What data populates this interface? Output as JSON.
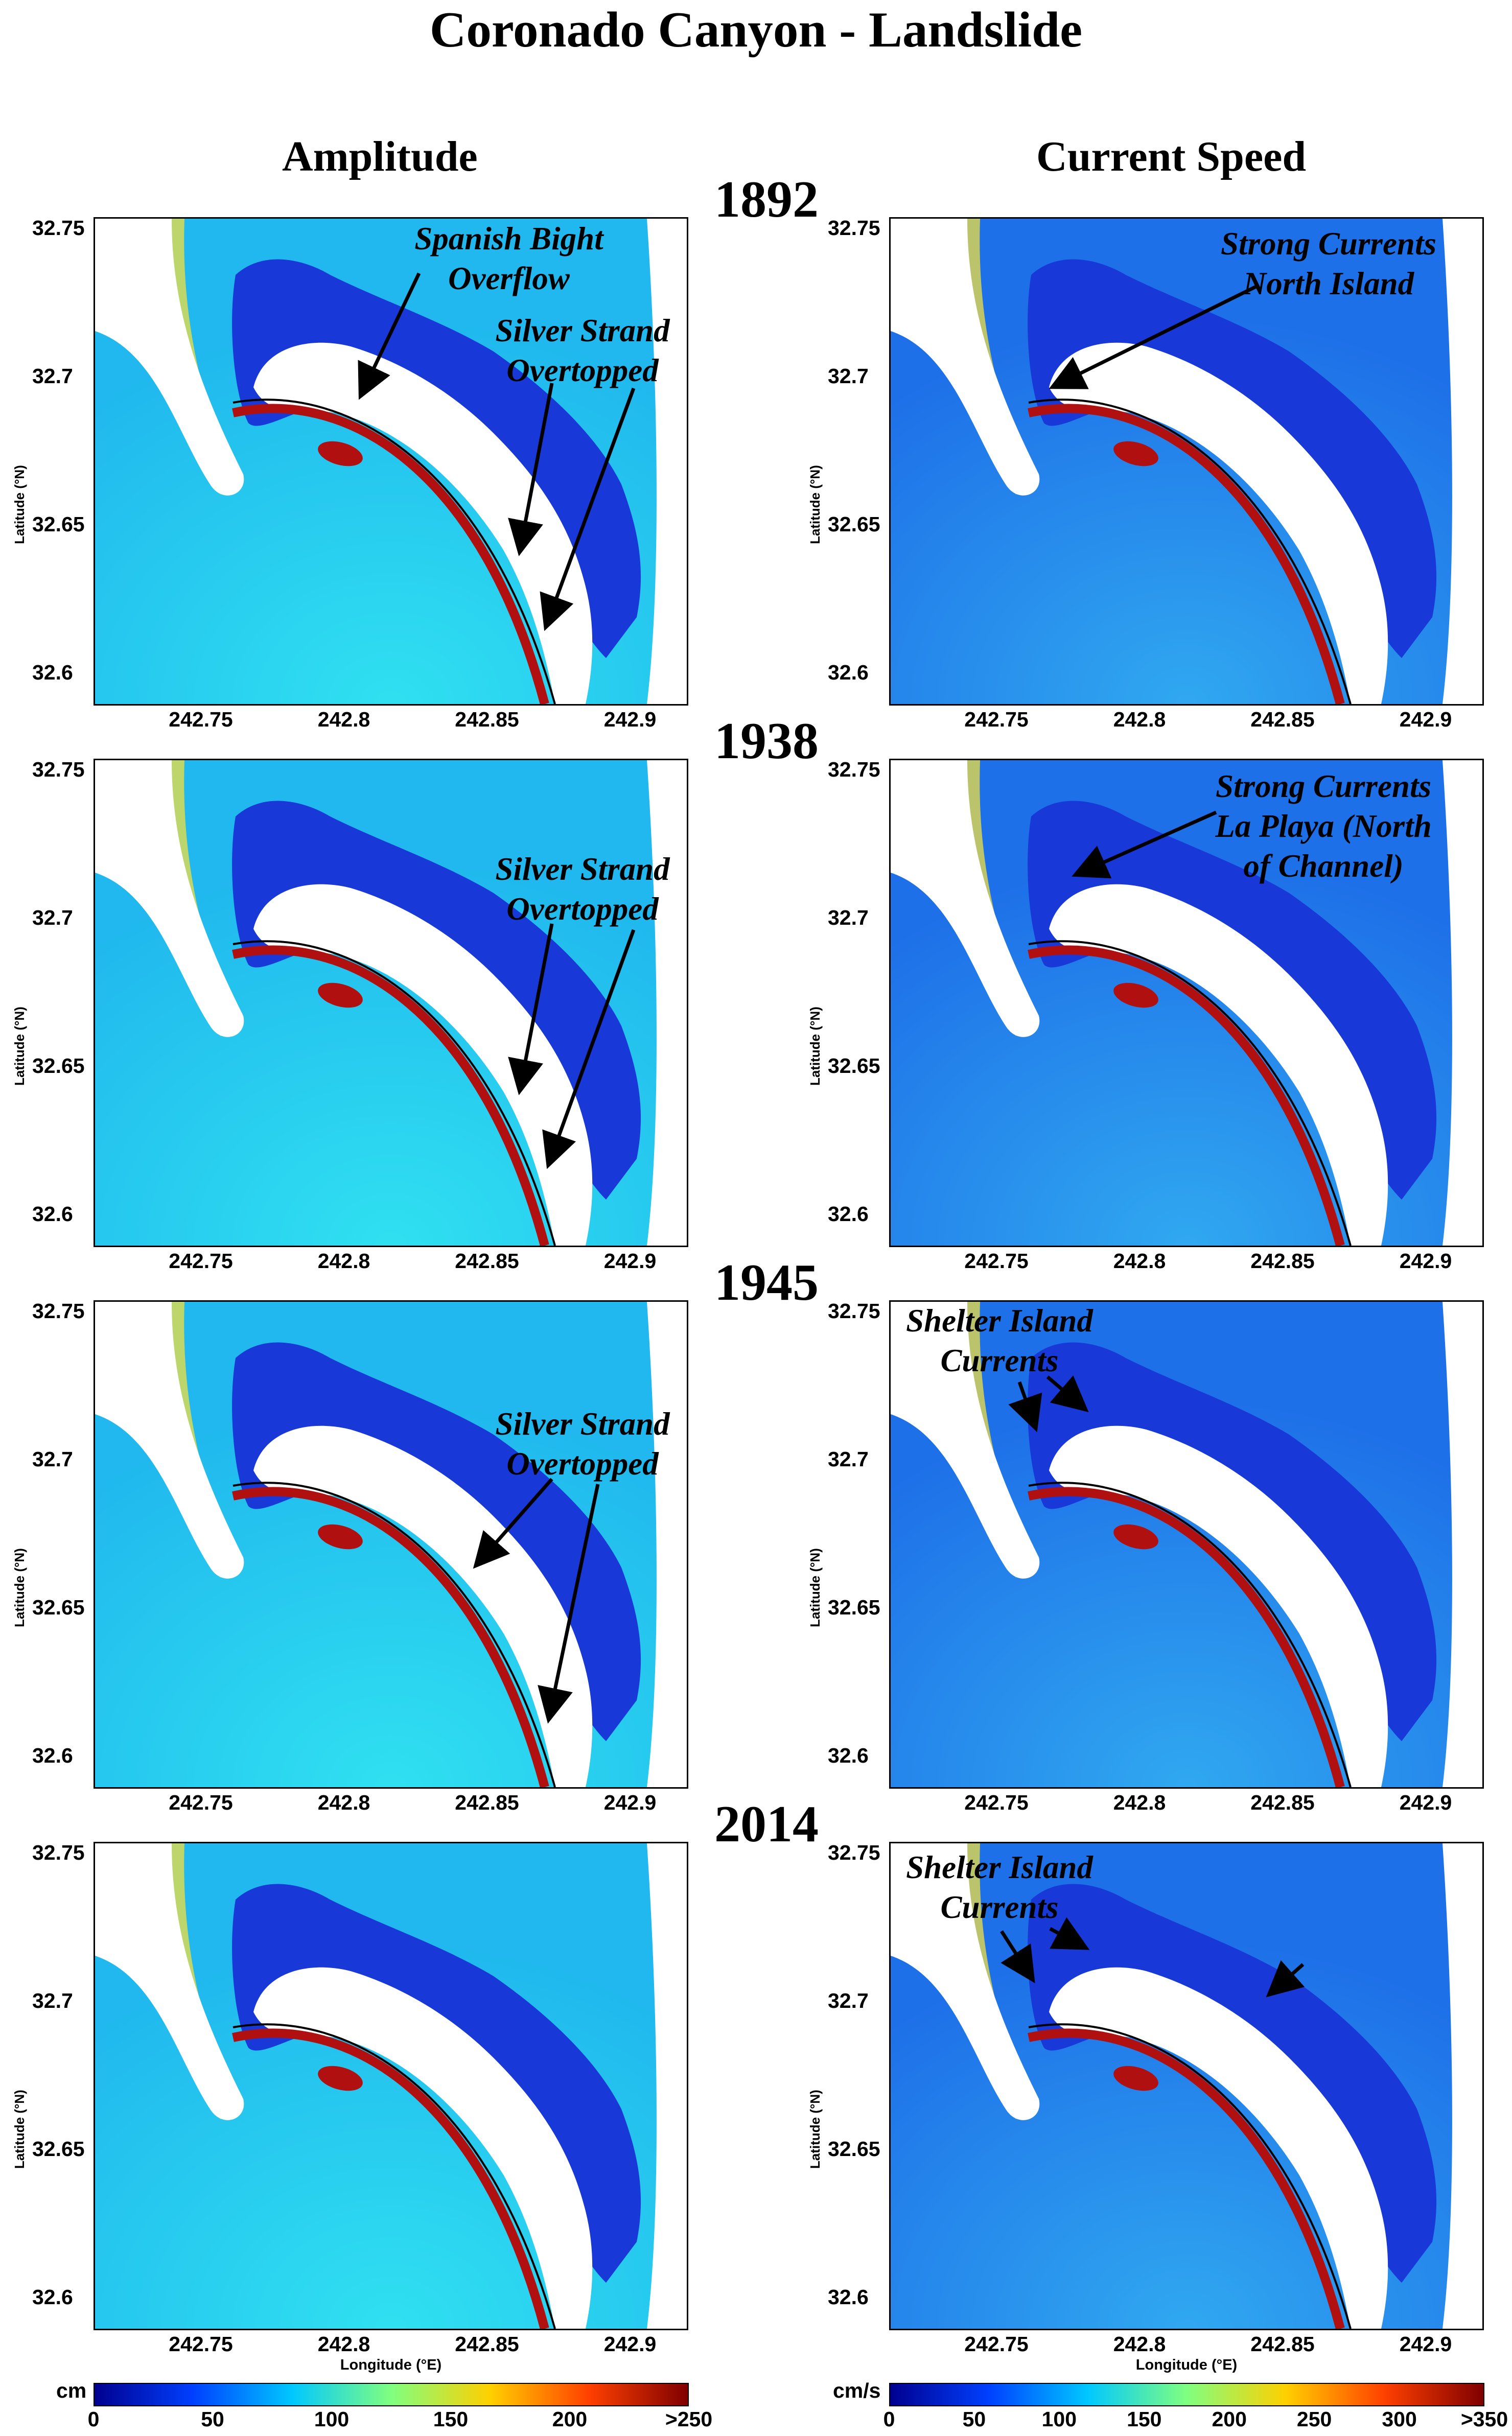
{
  "title": "Coronado Canyon - Landslide",
  "columns": {
    "left": "Amplitude",
    "right": "Current Speed"
  },
  "years": [
    "1892",
    "1938",
    "1945",
    "2014"
  ],
  "axes": {
    "lat_ticks": [
      "32.75",
      "32.7",
      "32.65",
      "32.6"
    ],
    "lon_ticks": [
      "242.75",
      "242.8",
      "242.85",
      "242.9"
    ],
    "ylabel": "Latitude (°N)",
    "xlabel": "Longitude (°E)"
  },
  "annotations": {
    "a1892": [
      "Spanish Bight",
      "Overflow",
      "Silver Strand",
      "Overtopped"
    ],
    "c1892": [
      "Strong Currents",
      "North Island"
    ],
    "a1938": [
      "Silver Strand",
      "Overtopped"
    ],
    "c1938": [
      "Strong Currents",
      "La Playa (North",
      "of Channel)"
    ],
    "a1945": [
      "Silver Strand",
      "Overtopped"
    ],
    "c1945": [
      "Shelter Island",
      "Currents"
    ],
    "c2014": [
      "Shelter Island",
      "Currents"
    ]
  },
  "colorbars": {
    "amplitude": {
      "unit": "cm",
      "ticks": [
        "0",
        "50",
        "100",
        "150",
        "200",
        ">250"
      ]
    },
    "speed": {
      "unit": "cm/s",
      "ticks": [
        "0",
        "50",
        "100",
        "150",
        "200",
        "250",
        "300",
        ">350"
      ]
    }
  },
  "colors": {
    "land": "#ffffff",
    "ocean": "#25c8ee",
    "bay": "#1838d8",
    "highest": "#b01010",
    "scale": [
      "#00008f",
      "#0040ff",
      "#00c8ff",
      "#80ff80",
      "#ffd000",
      "#ff4000",
      "#800000"
    ]
  }
}
